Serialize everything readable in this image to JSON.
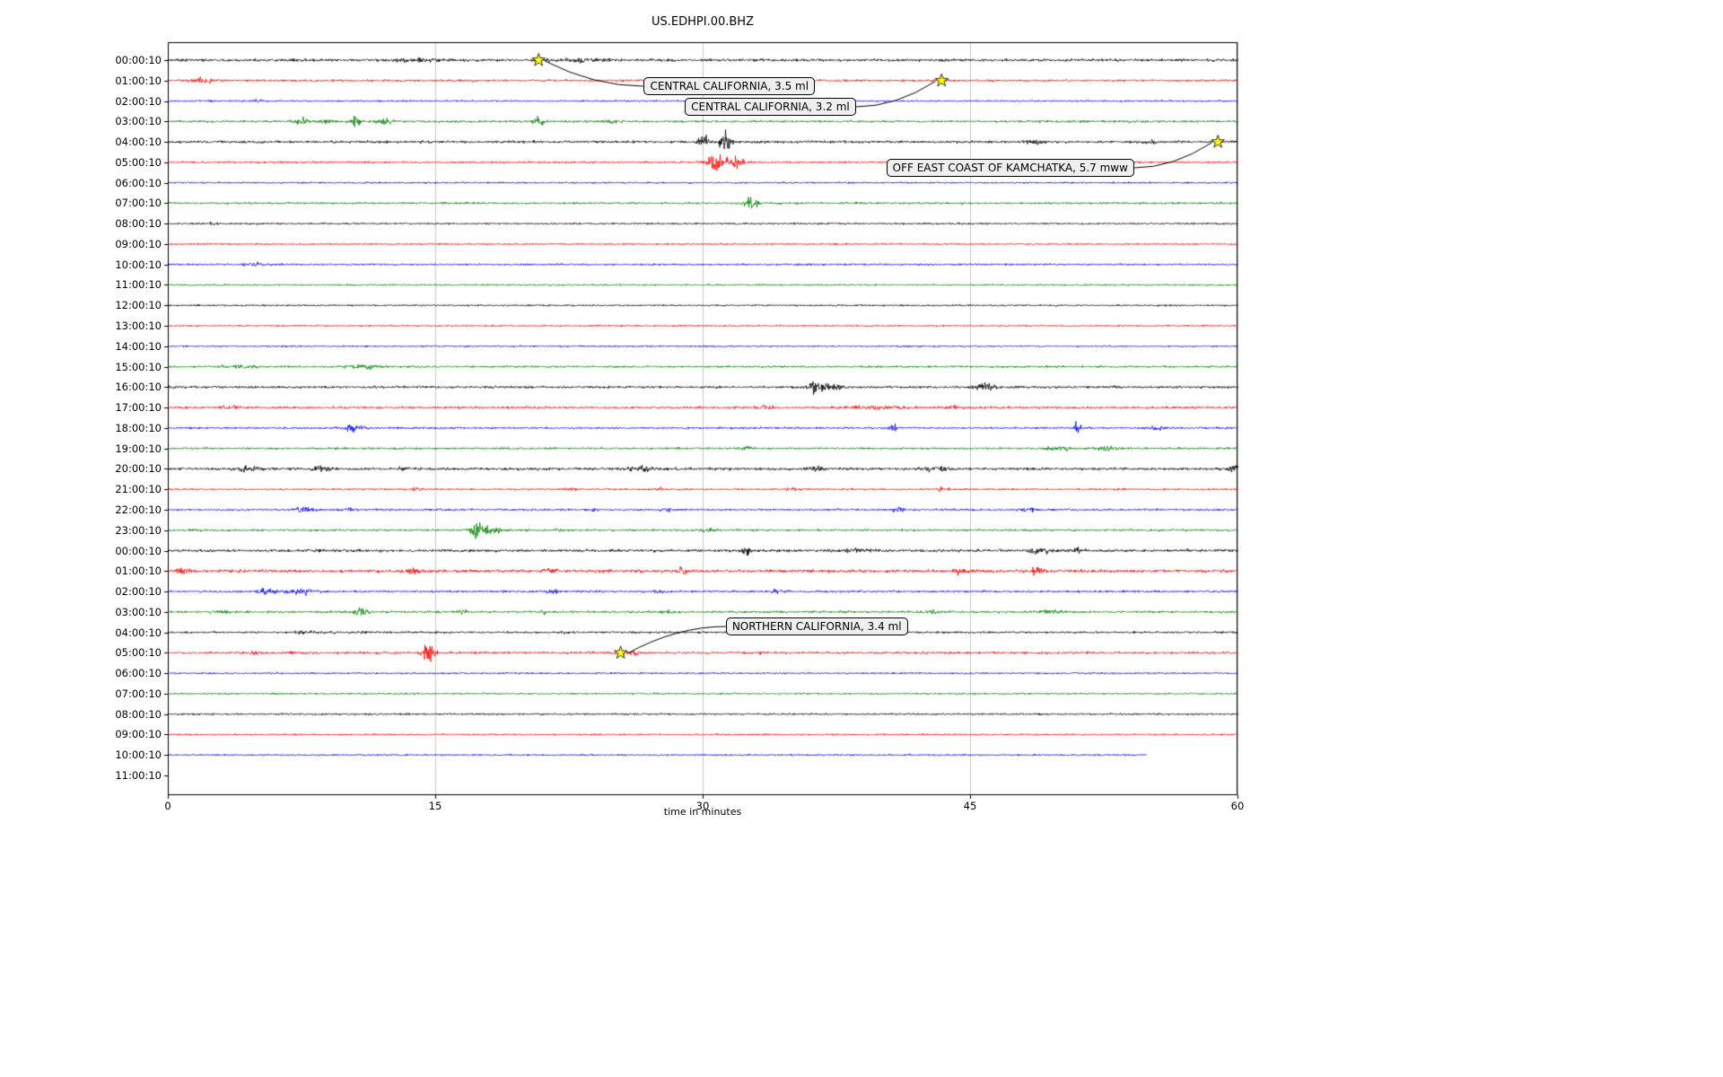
{
  "title": "US.EDHPI.00.BHZ",
  "chart_data": {
    "type": "line",
    "subtype": "helicorder-seismogram",
    "title": "US.EDHPI.00.BHZ",
    "xlabel": "time in minutes",
    "xlim": [
      0,
      60
    ],
    "xticks": [
      "0",
      "15",
      "30",
      "45",
      "60"
    ],
    "grid": "vertical",
    "legend": "none",
    "trace_color_cycle": [
      "#000000",
      "#ff0000",
      "#0000ff",
      "#008000"
    ],
    "marker": {
      "shape": "star",
      "fill": "#ffff00",
      "edge": "#000000"
    },
    "rows": [
      {
        "label": "00:00:10",
        "color": "#000000",
        "amp": 1.6,
        "bursts": [
          [
            14,
            1.5,
            1.2
          ],
          [
            23.5,
            2,
            0.9
          ],
          [
            7,
            0.5,
            0.5
          ]
        ]
      },
      {
        "label": "01:00:10",
        "color": "#ff0000",
        "amp": 1.3,
        "bursts": [
          [
            2,
            0.5,
            2.2
          ]
        ]
      },
      {
        "label": "02:00:10",
        "color": "#0000ff",
        "amp": 1.0,
        "bursts": [
          [
            5,
            0.3,
            1.2
          ]
        ]
      },
      {
        "label": "03:00:10",
        "color": "#008000",
        "amp": 1.3,
        "bursts": [
          [
            7.5,
            0.5,
            3.5
          ],
          [
            8.8,
            0.4,
            2.5
          ],
          [
            10.5,
            0.3,
            4.5
          ],
          [
            12.2,
            0.4,
            3.5
          ],
          [
            20.8,
            0.3,
            4.5
          ],
          [
            25,
            0.5,
            1.2
          ]
        ]
      },
      {
        "label": "04:00:10",
        "color": "#000000",
        "amp": 1.5,
        "bursts": [
          [
            30,
            0.3,
            5
          ],
          [
            31.3,
            0.3,
            8
          ],
          [
            48.7,
            0.6,
            1.2
          ],
          [
            55,
            0.5,
            0.8
          ]
        ]
      },
      {
        "label": "05:00:10",
        "color": "#ff0000",
        "amp": 1.2,
        "bursts": [
          [
            30.8,
            0.5,
            9
          ],
          [
            31.9,
            0.4,
            5
          ]
        ]
      },
      {
        "label": "06:00:10",
        "color": "#0000ff",
        "amp": 1.0,
        "bursts": []
      },
      {
        "label": "07:00:10",
        "color": "#008000",
        "amp": 1.2,
        "bursts": [
          [
            32.7,
            0.4,
            6.5
          ]
        ]
      },
      {
        "label": "08:00:10",
        "color": "#000000",
        "amp": 1.1,
        "bursts": [
          [
            2.5,
            0.3,
            1.2
          ]
        ]
      },
      {
        "label": "09:00:10",
        "color": "#ff0000",
        "amp": 1.0,
        "bursts": []
      },
      {
        "label": "10:00:10",
        "color": "#0000ff",
        "amp": 1.1,
        "bursts": [
          [
            5,
            0.8,
            1.2
          ]
        ]
      },
      {
        "label": "11:00:10",
        "color": "#008000",
        "amp": 1.0,
        "bursts": []
      },
      {
        "label": "12:00:10",
        "color": "#000000",
        "amp": 1.0,
        "bursts": []
      },
      {
        "label": "13:00:10",
        "color": "#ff0000",
        "amp": 1.0,
        "bursts": []
      },
      {
        "label": "14:00:10",
        "color": "#0000ff",
        "amp": 1.0,
        "bursts": []
      },
      {
        "label": "15:00:10",
        "color": "#008000",
        "amp": 1.2,
        "bursts": [
          [
            4,
            1,
            1.2
          ],
          [
            11,
            0.8,
            2.2
          ]
        ]
      },
      {
        "label": "16:00:10",
        "color": "#000000",
        "amp": 1.4,
        "bursts": [
          [
            36.3,
            0.4,
            6
          ],
          [
            37.2,
            0.6,
            3.5
          ],
          [
            45.8,
            0.6,
            2.5
          ],
          [
            53,
            0.3,
            1.2
          ]
        ]
      },
      {
        "label": "17:00:10",
        "color": "#ff0000",
        "amp": 1.4,
        "bursts": [
          [
            3.5,
            0.5,
            1.2
          ],
          [
            33.5,
            0.6,
            1.2
          ],
          [
            40,
            1.5,
            1.2
          ],
          [
            44,
            0.5,
            1
          ]
        ]
      },
      {
        "label": "18:00:10",
        "color": "#0000ff",
        "amp": 1.2,
        "bursts": [
          [
            10.5,
            0.5,
            3.5
          ],
          [
            40.7,
            0.3,
            2.5
          ],
          [
            51,
            0.2,
            5.5
          ],
          [
            55.5,
            0.4,
            1.8
          ]
        ]
      },
      {
        "label": "19:00:10",
        "color": "#008000",
        "amp": 1.2,
        "bursts": [
          [
            32.5,
            0.3,
            2.2
          ],
          [
            50,
            0.8,
            1.8
          ],
          [
            52.5,
            0.6,
            2.2
          ]
        ]
      },
      {
        "label": "20:00:10",
        "color": "#000000",
        "amp": 1.6,
        "bursts": [
          [
            4.5,
            0.8,
            1.2
          ],
          [
            8.7,
            0.5,
            1.6
          ],
          [
            13.3,
            0.3,
            1.5
          ],
          [
            26.5,
            0.8,
            1.5
          ],
          [
            36.3,
            0.4,
            1.6
          ],
          [
            43,
            1,
            1.2
          ],
          [
            59.8,
            0.3,
            3.5
          ]
        ]
      },
      {
        "label": "21:00:10",
        "color": "#ff0000",
        "amp": 1.1,
        "bursts": [
          [
            14,
            0.3,
            2.2
          ],
          [
            22.5,
            0.3,
            1.8
          ],
          [
            27.5,
            0.3,
            1.8
          ],
          [
            35,
            0.4,
            1.8
          ],
          [
            43.5,
            0.3,
            2.2
          ],
          [
            53.5,
            0.3,
            1.2
          ]
        ]
      },
      {
        "label": "22:00:10",
        "color": "#0000ff",
        "amp": 1.2,
        "bursts": [
          [
            7.7,
            0.5,
            2.5
          ],
          [
            10,
            0.4,
            1.8
          ],
          [
            24,
            0.4,
            1.2
          ],
          [
            28,
            0.4,
            1.2
          ],
          [
            41,
            0.4,
            2.2
          ],
          [
            48.2,
            0.4,
            2.5
          ]
        ]
      },
      {
        "label": "23:00:10",
        "color": "#008000",
        "amp": 1.3,
        "bursts": [
          [
            17.3,
            0.3,
            8
          ],
          [
            18.1,
            0.5,
            3.5
          ],
          [
            22,
            0.3,
            1.2
          ],
          [
            30.2,
            0.4,
            2.2
          ]
        ]
      },
      {
        "label": "00:00:10",
        "color": "#000000",
        "amp": 1.7,
        "bursts": [
          [
            32.4,
            0.2,
            5
          ],
          [
            38.5,
            0.8,
            1.2
          ],
          [
            49,
            0.6,
            1.6
          ],
          [
            51,
            0.4,
            1.2
          ]
        ]
      },
      {
        "label": "01:00:10",
        "color": "#ff0000",
        "amp": 1.8,
        "bursts": [
          [
            0.8,
            0.4,
            2
          ],
          [
            13.7,
            0.3,
            2.5
          ],
          [
            21.5,
            0.3,
            2
          ],
          [
            28.8,
            0.3,
            1.6
          ],
          [
            44.5,
            0.4,
            1.6
          ],
          [
            48.8,
            0.3,
            3
          ]
        ]
      },
      {
        "label": "02:00:10",
        "color": "#0000ff",
        "amp": 1.3,
        "bursts": [
          [
            5.5,
            0.5,
            2.2
          ],
          [
            7.5,
            0.8,
            2.5
          ],
          [
            21.5,
            0.4,
            1.6
          ],
          [
            27.5,
            0.3,
            1.2
          ],
          [
            34.2,
            0.4,
            1.8
          ]
        ]
      },
      {
        "label": "03:00:10",
        "color": "#008000",
        "amp": 1.3,
        "bursts": [
          [
            3,
            0.4,
            1.6
          ],
          [
            10.8,
            0.5,
            3
          ],
          [
            16.5,
            0.3,
            2.2
          ],
          [
            21,
            0.3,
            1.2
          ],
          [
            28,
            0.4,
            1.2
          ],
          [
            43,
            0.4,
            1.6
          ],
          [
            49.5,
            0.8,
            2.2
          ]
        ]
      },
      {
        "label": "04:00:10",
        "color": "#000000",
        "amp": 1.2,
        "bursts": [
          [
            8,
            1,
            1
          ],
          [
            11,
            0.4,
            1.4
          ],
          [
            22.5,
            0.3,
            1.2
          ]
        ]
      },
      {
        "label": "05:00:10",
        "color": "#ff0000",
        "amp": 1.4,
        "bursts": [
          [
            5,
            0.6,
            1.2
          ],
          [
            7,
            0.4,
            1.2
          ],
          [
            14.6,
            0.3,
            9
          ],
          [
            25.8,
            0.8,
            1.6
          ],
          [
            33,
            0.4,
            1
          ]
        ]
      },
      {
        "label": "06:00:10",
        "color": "#0000ff",
        "amp": 1.0,
        "bursts": []
      },
      {
        "label": "07:00:10",
        "color": "#008000",
        "amp": 1.0,
        "bursts": []
      },
      {
        "label": "08:00:10",
        "color": "#000000",
        "amp": 1.1,
        "bursts": []
      },
      {
        "label": "09:00:10",
        "color": "#ff0000",
        "amp": 1.0,
        "bursts": []
      },
      {
        "label": "10:00:10",
        "color": "#0000ff",
        "amp": 1.0,
        "bursts": [],
        "end": 54.9
      },
      {
        "label": "11:00:10",
        "color": "#008000",
        "amp": 1.0,
        "bursts": [],
        "trace": false
      }
    ],
    "events": [
      {
        "name": "CENTRAL CALIFORNIA, 3.5 ml",
        "row": 0,
        "minute": 20.8,
        "box": {
          "minute": 26.7,
          "row_f": 1.28,
          "side": "left"
        }
      },
      {
        "name": "CENTRAL CALIFORNIA, 3.2 ml",
        "row": 1,
        "minute": 43.4,
        "box": {
          "minute": 29.0,
          "row_f": 2.3,
          "side": "right"
        }
      },
      {
        "name": "OFF EAST COAST OF KAMCHATKA, 5.7 mww",
        "row": 4,
        "minute": 58.9,
        "box": {
          "minute": 40.3,
          "row_f": 5.25,
          "side": "right"
        }
      },
      {
        "name": "NORTHERN CALIFORNIA, 3.4 ml",
        "row": 29,
        "minute": 25.4,
        "box": {
          "minute": 31.3,
          "row_f": 27.72,
          "side": "left"
        }
      }
    ]
  }
}
